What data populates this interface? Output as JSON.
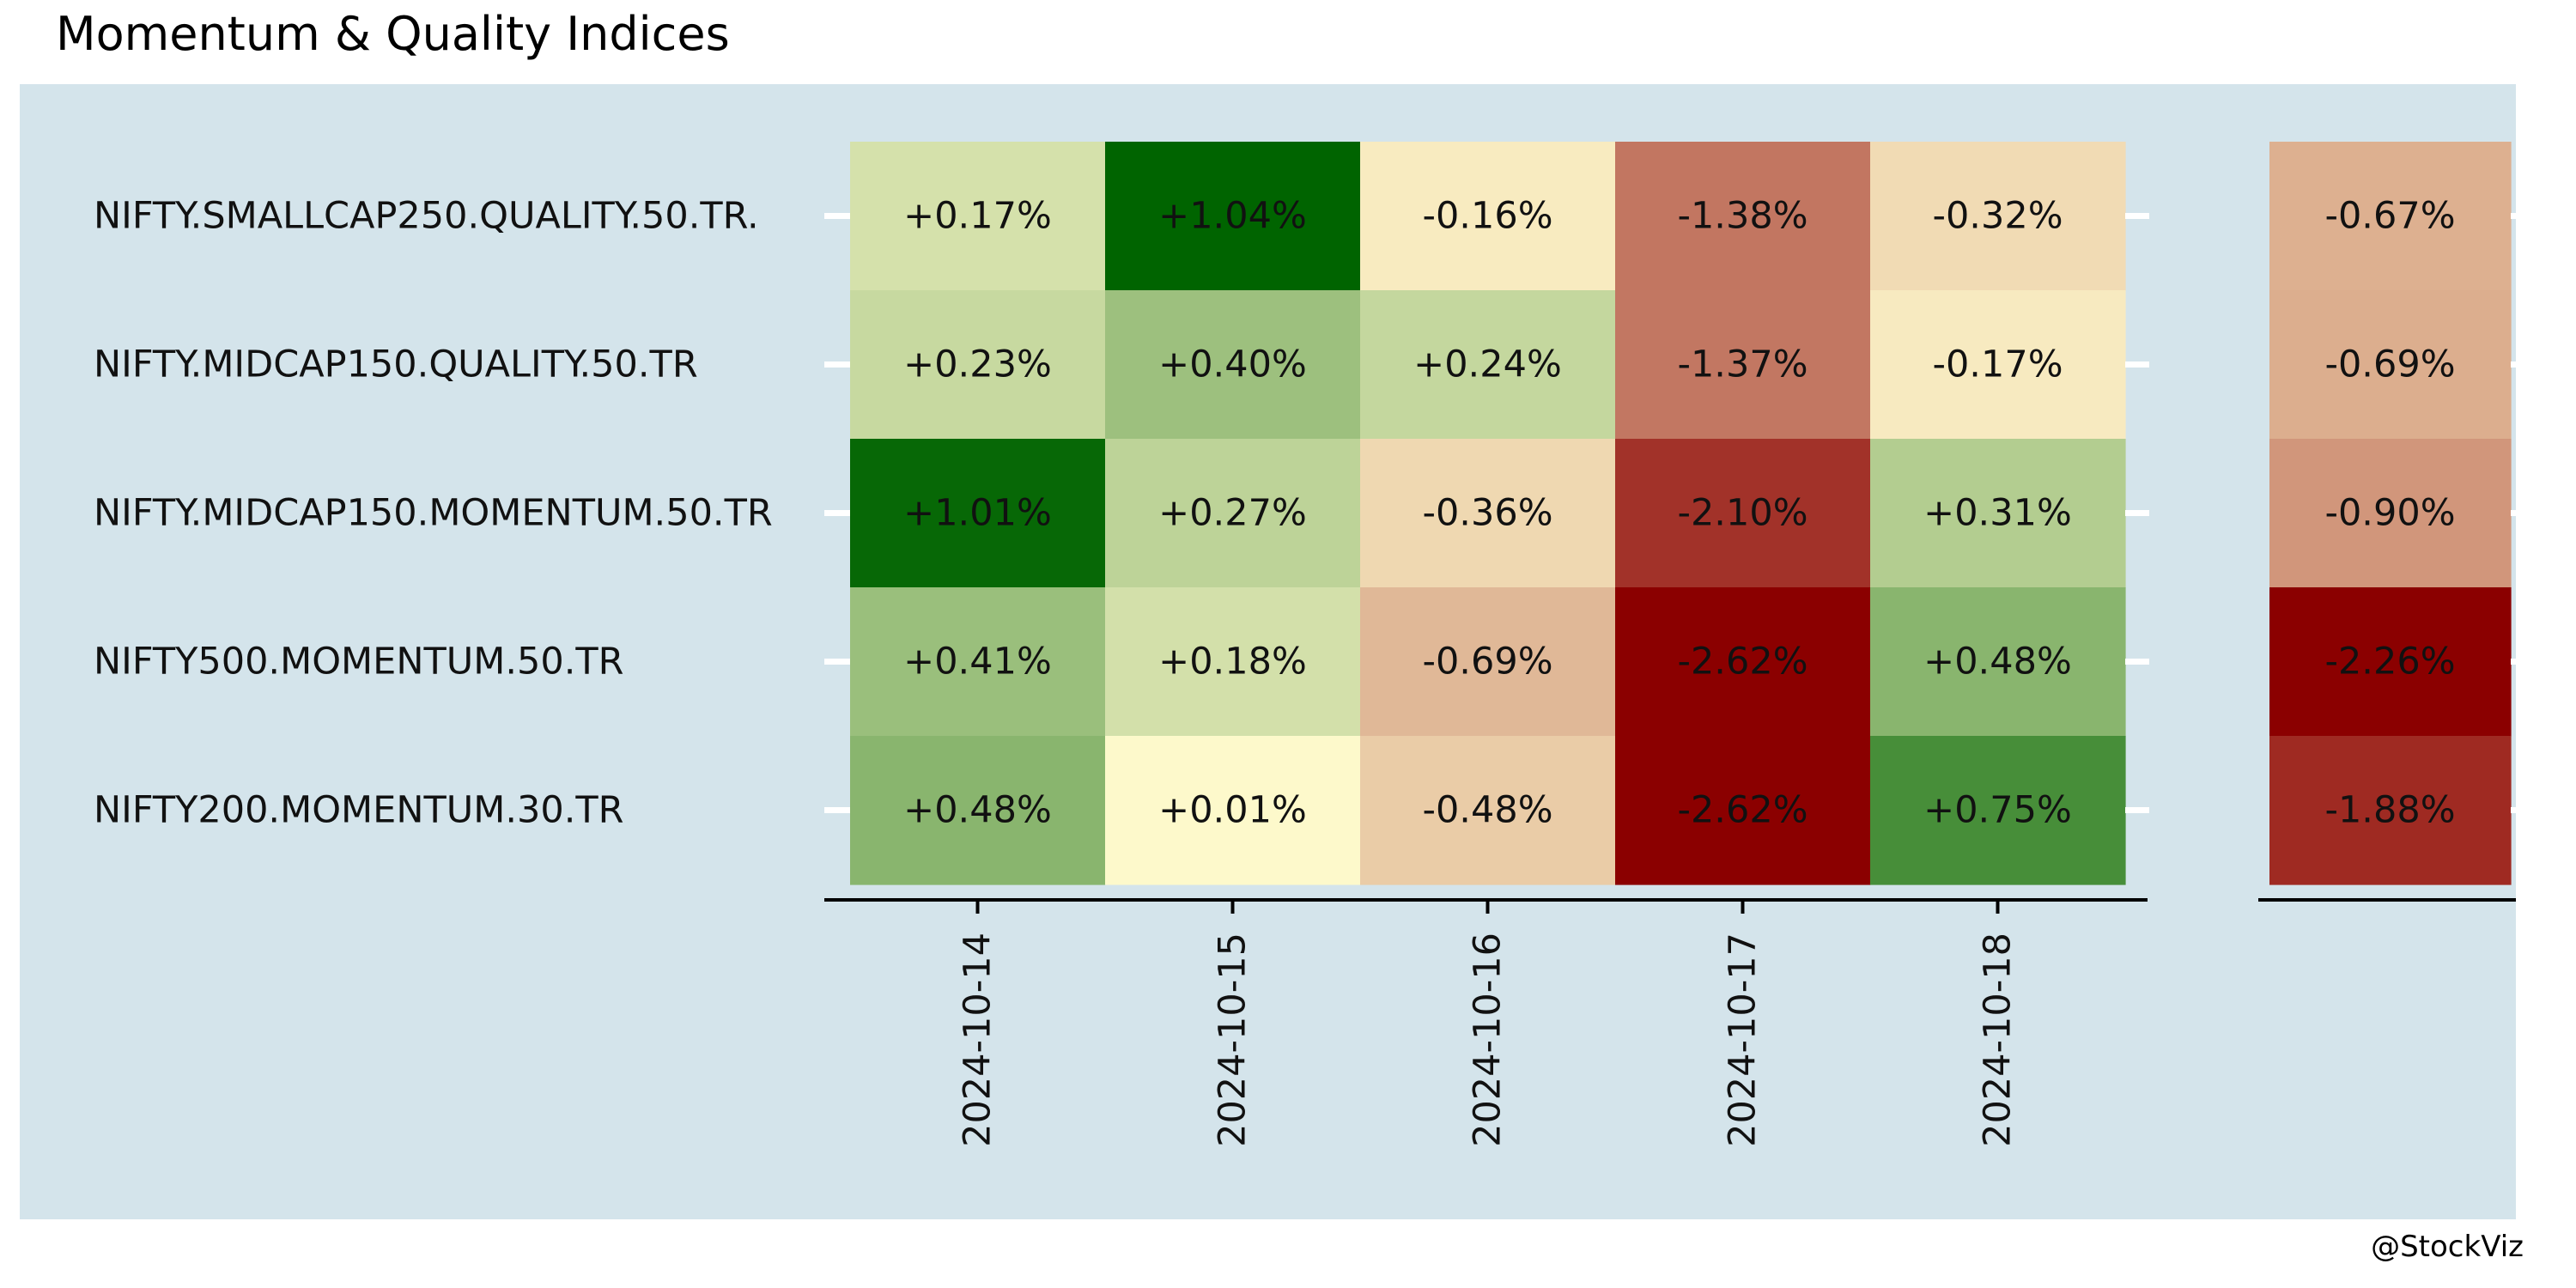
{
  "title": "Momentum & Quality Indices",
  "credit": "@StockViz",
  "colors": {
    "panel_bg": "#d4e4eb",
    "scale_negative": "#8b0000",
    "scale_mid": "#fffacd",
    "scale_positive": "#006400"
  },
  "chart_data": [
    {
      "type": "heatmap",
      "title": "",
      "xlabel": "",
      "ylabel": "",
      "x": [
        "2024-10-14",
        "2024-10-15",
        "2024-10-16",
        "2024-10-17",
        "2024-10-18"
      ],
      "y": [
        "NIFTY.SMALLCAP250.QUALITY.50.TR.",
        "NIFTY.MIDCAP150.QUALITY.50.TR",
        "NIFTY.MIDCAP150.MOMENTUM.50.TR",
        "NIFTY500.MOMENTUM.50.TR",
        "NIFTY200.MOMENTUM.30.TR"
      ],
      "values": [
        [
          0.17,
          1.04,
          -0.16,
          -1.38,
          -0.32
        ],
        [
          0.23,
          0.4,
          0.24,
          -1.37,
          -0.17
        ],
        [
          1.01,
          0.27,
          -0.36,
          -2.1,
          0.31
        ],
        [
          0.41,
          0.18,
          -0.69,
          -2.62,
          0.48
        ],
        [
          0.48,
          0.01,
          -0.48,
          -2.62,
          0.75
        ]
      ],
      "labels": [
        [
          "+0.17%",
          "+1.04%",
          "-0.16%",
          "-1.38%",
          "-0.32%"
        ],
        [
          "+0.23%",
          "+0.40%",
          "+0.24%",
          "-1.37%",
          "-0.17%"
        ],
        [
          "+1.01%",
          "+0.27%",
          "-0.36%",
          "-2.10%",
          "+0.31%"
        ],
        [
          "+0.41%",
          "+0.18%",
          "-0.69%",
          "-2.62%",
          "+0.48%"
        ],
        [
          "+0.48%",
          "+0.01%",
          "-0.48%",
          "-2.62%",
          "+0.75%"
        ]
      ],
      "color_scale": "red-yellow-green",
      "grid": false,
      "legend": "none"
    },
    {
      "type": "heatmap",
      "title": "",
      "xlabel": "",
      "ylabel": "",
      "x": [],
      "y": [
        "NIFTY.SMALLCAP250.QUALITY.50.TR.",
        "NIFTY.MIDCAP150.QUALITY.50.TR",
        "NIFTY.MIDCAP150.MOMENTUM.50.TR",
        "NIFTY500.MOMENTUM.50.TR",
        "NIFTY200.MOMENTUM.30.TR"
      ],
      "values": [
        [
          -0.67
        ],
        [
          -0.69
        ],
        [
          -0.9
        ],
        [
          -2.26
        ],
        [
          -1.88
        ]
      ],
      "labels": [
        [
          "-0.67%"
        ],
        [
          "-0.69%"
        ],
        [
          "-0.90%"
        ],
        [
          "-2.26%"
        ],
        [
          "-1.88%"
        ]
      ],
      "color_scale": "red-yellow",
      "grid": false,
      "legend": "none"
    }
  ]
}
